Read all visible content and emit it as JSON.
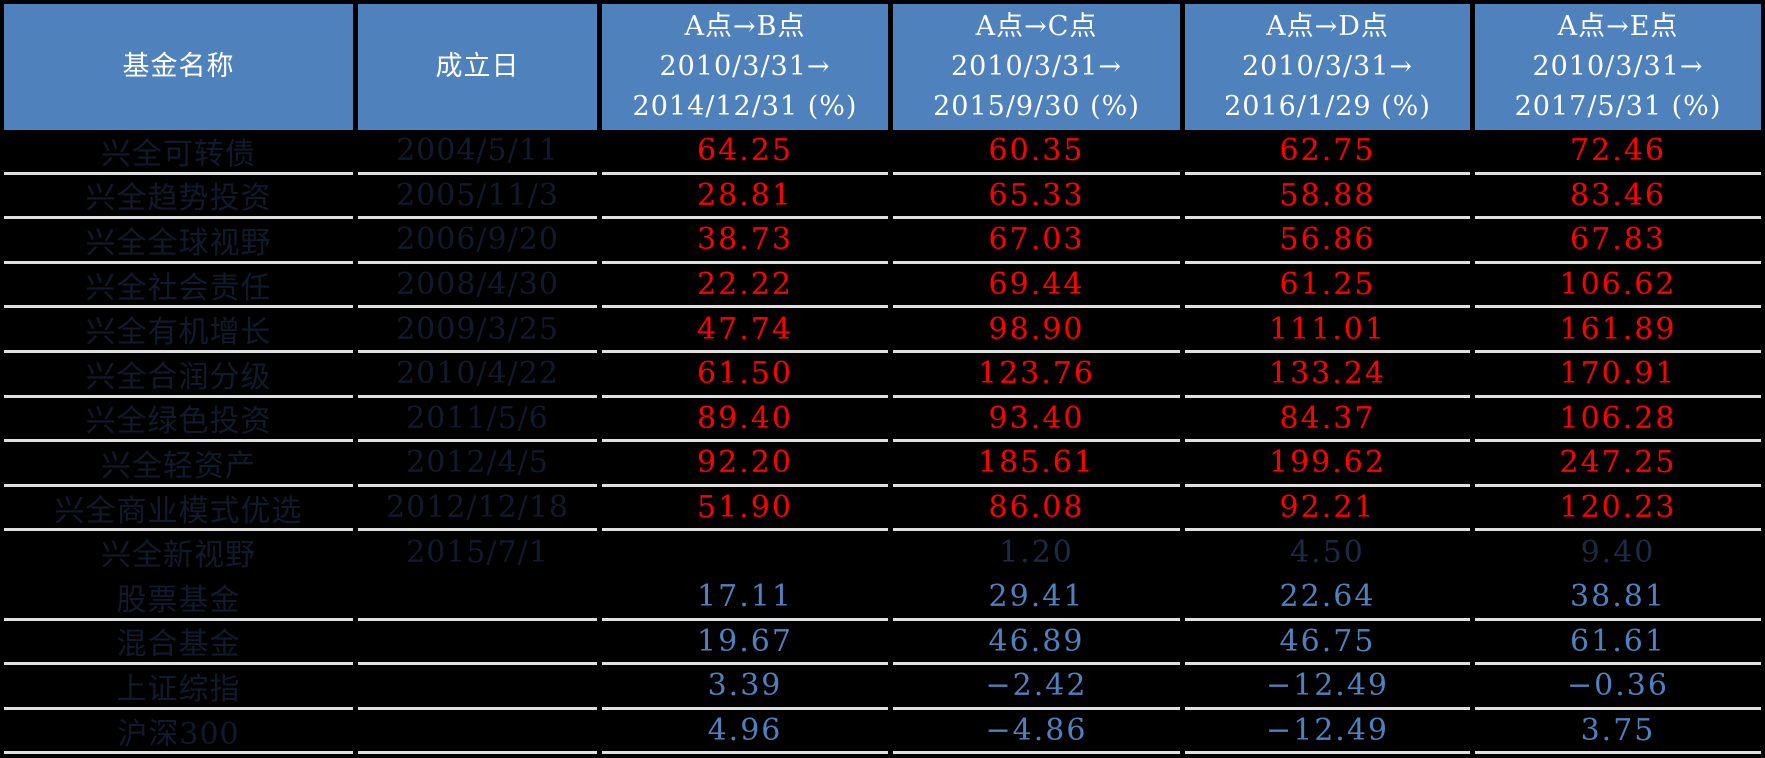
{
  "colors": {
    "bg": "#000000",
    "header_bg": "#4f81bd",
    "header_text": "#ffffff",
    "divider": "#e0e0e0",
    "dim_text": "#111a2c",
    "dark_value": "#1c2a45",
    "red": "#fe0000",
    "blue": "#4f81bd"
  },
  "table": {
    "header": {
      "cols": [
        {
          "lines": [
            "基金名称"
          ]
        },
        {
          "lines": [
            "成立日"
          ]
        },
        {
          "lines": [
            "A点→B点",
            "2010/3/31→",
            "2014/12/31 (%)"
          ]
        },
        {
          "lines": [
            "A点→C点",
            "2010/3/31→",
            "2015/9/30 (%)"
          ]
        },
        {
          "lines": [
            "A点→D点",
            "2010/3/31→",
            "2016/1/29 (%)"
          ]
        },
        {
          "lines": [
            "A点→E点",
            "2010/3/31→",
            "2017/5/31 (%)"
          ]
        }
      ]
    },
    "rows": [
      {
        "cells": [
          "兴全可转债",
          "2004/5/11",
          "64.25",
          "60.35",
          "62.75",
          "72.46"
        ],
        "value_style": "red",
        "divider_below": true
      },
      {
        "cells": [
          "兴全趋势投资",
          "2005/11/3",
          "28.81",
          "65.33",
          "58.88",
          "83.46"
        ],
        "value_style": "red",
        "divider_below": true
      },
      {
        "cells": [
          "兴全全球视野",
          "2006/9/20",
          "38.73",
          "67.03",
          "56.86",
          "67.83"
        ],
        "value_style": "red",
        "divider_below": true
      },
      {
        "cells": [
          "兴全社会责任",
          "2008/4/30",
          "22.22",
          "69.44",
          "61.25",
          "106.62"
        ],
        "value_style": "red",
        "divider_below": true
      },
      {
        "cells": [
          "兴全有机增长",
          "2009/3/25",
          "47.74",
          "98.90",
          "111.01",
          "161.89"
        ],
        "value_style": "red",
        "divider_below": true
      },
      {
        "cells": [
          "兴全合润分级",
          "2010/4/22",
          "61.50",
          "123.76",
          "133.24",
          "170.91"
        ],
        "value_style": "red",
        "divider_below": true
      },
      {
        "cells": [
          "兴全绿色投资",
          "2011/5/6",
          "89.40",
          "93.40",
          "84.37",
          "106.28"
        ],
        "value_style": "red",
        "divider_below": true
      },
      {
        "cells": [
          "兴全轻资产",
          "2012/4/5",
          "92.20",
          "185.61",
          "199.62",
          "247.25"
        ],
        "value_style": "red",
        "divider_below": true
      },
      {
        "cells": [
          "兴全商业模式优选",
          "2012/12/18",
          "51.90",
          "86.08",
          "92.21",
          "120.23"
        ],
        "value_style": "red",
        "divider_below": true
      },
      {
        "cells": [
          "兴全新视野",
          "2015/7/1",
          "",
          "1.20",
          "4.50",
          "9.40"
        ],
        "value_style": "dark",
        "divider_below": false
      },
      {
        "cells": [
          "股票基金",
          "",
          "17.11",
          "29.41",
          "22.64",
          "38.81"
        ],
        "value_style": "blue",
        "divider_below": true
      },
      {
        "cells": [
          "混合基金",
          "",
          "19.67",
          "46.89",
          "46.75",
          "61.61"
        ],
        "value_style": "blue",
        "divider_below": true
      },
      {
        "cells": [
          "上证综指",
          "",
          "3.39",
          "−2.42",
          "−12.49",
          "−0.36"
        ],
        "value_style": "blue",
        "divider_below": true
      },
      {
        "cells": [
          "沪深300",
          "",
          "4.96",
          "−4.86",
          "−12.49",
          "3.75"
        ],
        "value_style": "blue",
        "divider_below": true
      }
    ]
  },
  "chart_data": {
    "type": "table",
    "columns": [
      "基金名称",
      "成立日",
      "A点→B点 2010/3/31→2014/12/31 (%)",
      "A点→C点 2010/3/31→2015/9/30 (%)",
      "A点→D点 2010/3/31→2016/1/29 (%)",
      "A点→E点 2010/3/31→2017/5/31 (%)"
    ],
    "rows": [
      [
        "兴全可转债",
        "2004/5/11",
        64.25,
        60.35,
        62.75,
        72.46
      ],
      [
        "兴全趋势投资",
        "2005/11/3",
        28.81,
        65.33,
        58.88,
        83.46
      ],
      [
        "兴全全球视野",
        "2006/9/20",
        38.73,
        67.03,
        56.86,
        67.83
      ],
      [
        "兴全社会责任",
        "2008/4/30",
        22.22,
        69.44,
        61.25,
        106.62
      ],
      [
        "兴全有机增长",
        "2009/3/25",
        47.74,
        98.9,
        111.01,
        161.89
      ],
      [
        "兴全合润分级",
        "2010/4/22",
        61.5,
        123.76,
        133.24,
        170.91
      ],
      [
        "兴全绿色投资",
        "2011/5/6",
        89.4,
        93.4,
        84.37,
        106.28
      ],
      [
        "兴全轻资产",
        "2012/4/5",
        92.2,
        185.61,
        199.62,
        247.25
      ],
      [
        "兴全商业模式优选",
        "2012/12/18",
        51.9,
        86.08,
        92.21,
        120.23
      ],
      [
        "兴全新视野",
        "2015/7/1",
        null,
        1.2,
        4.5,
        9.4
      ],
      [
        "股票基金",
        "",
        17.11,
        29.41,
        22.64,
        38.81
      ],
      [
        "混合基金",
        "",
        19.67,
        46.89,
        46.75,
        61.61
      ],
      [
        "上证综指",
        "",
        3.39,
        -2.42,
        -12.49,
        -0.36
      ],
      [
        "沪深300",
        "",
        4.96,
        -4.86,
        -12.49,
        3.75
      ]
    ],
    "layout": {
      "grid": "horizontal light dividers on black background",
      "header_style": "blue fill, white text",
      "fund_value_color": "red",
      "benchmark_value_color": "blue"
    }
  }
}
